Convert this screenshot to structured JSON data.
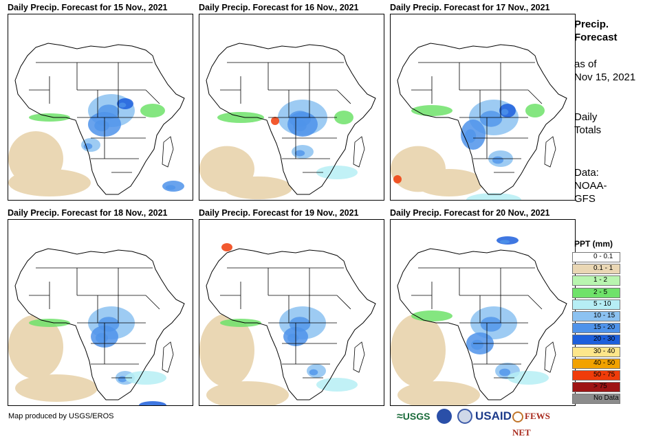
{
  "panels": [
    {
      "title": "Daily Precip. Forecast for 15 Nov., 2021",
      "day": "15"
    },
    {
      "title": "Daily Precip. Forecast for 16 Nov., 2021",
      "day": "16"
    },
    {
      "title": "Daily Precip. Forecast for 17 Nov., 2021",
      "day": "17"
    },
    {
      "title": "Daily Precip. Forecast for 18 Nov., 2021",
      "day": "18"
    },
    {
      "title": "Daily Precip. Forecast for 19 Nov., 2021",
      "day": "19"
    },
    {
      "title": "Daily Precip. Forecast for 20 Nov., 2021",
      "day": "20"
    }
  ],
  "sidebar": {
    "title_line1": "Precip.",
    "title_line2": "Forecast",
    "asof_line1": "as of",
    "asof_line2": "Nov 15, 2021",
    "daily_line1": "Daily",
    "daily_line2": "Totals",
    "data_line1": "Data:",
    "data_line2": "NOAA-",
    "data_line3": "GFS"
  },
  "legend": {
    "title": "PPT (mm)",
    "items": [
      {
        "label": "0 - 0.1",
        "color": "#ffffff"
      },
      {
        "label": "0.1 - 1",
        "color": "#ead7b4"
      },
      {
        "label": "1 - 2",
        "color": "#b9f5b0"
      },
      {
        "label": "2 - 5",
        "color": "#6fe26a"
      },
      {
        "label": "5 - 10",
        "color": "#b6eef5"
      },
      {
        "label": "10 - 15",
        "color": "#8cc2f1"
      },
      {
        "label": "15 - 20",
        "color": "#4f93ea"
      },
      {
        "label": "20 - 30",
        "color": "#1d5fdc"
      },
      {
        "label": "30 - 40",
        "color": "#fde68a"
      },
      {
        "label": "40 - 50",
        "color": "#f2a200"
      },
      {
        "label": "50 - 75",
        "color": "#f03c0a"
      },
      {
        "label": "> 75",
        "color": "#9e1414"
      },
      {
        "label": "No Data",
        "color": "#8c8c8c"
      }
    ]
  },
  "credit": "Map produced by USGS/EROS",
  "logos": {
    "usgs": "USGS",
    "usaid": "USAID",
    "fewsnet": "FEWS NET"
  }
}
